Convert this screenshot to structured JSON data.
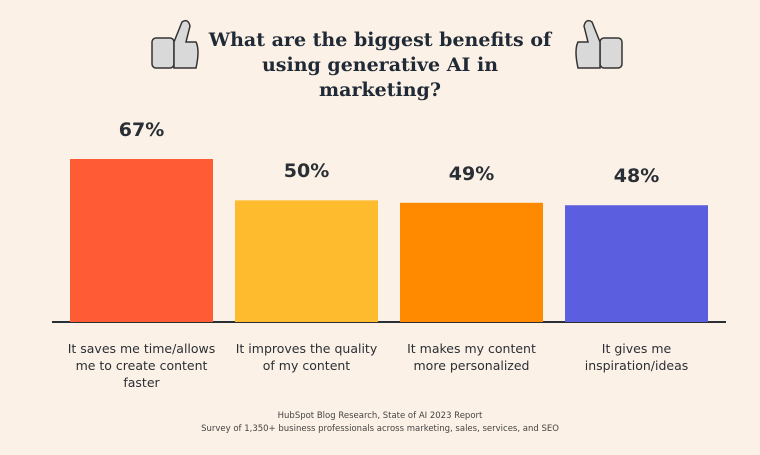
{
  "chart_data": {
    "type": "bar",
    "title": "What are the biggest benefits of using generative AI in marketing?",
    "categories": [
      "It saves me time/allows me to create content faster",
      "It improves the quality of my content",
      "It makes my content more personalized",
      "It gives me inspiration/ideas"
    ],
    "values": [
      67,
      50,
      49,
      48
    ],
    "value_labels": [
      "67%",
      "50%",
      "49%",
      "48%"
    ],
    "colors": [
      "#ff5c35",
      "#ffbb2e",
      "#ff8a00",
      "#5b5fdf"
    ],
    "source": [
      "HubSpot Blog Research, State of AI 2023 Report",
      "Survey of 1,350+ business professionals across marketing, sales, services, and SEO"
    ]
  }
}
